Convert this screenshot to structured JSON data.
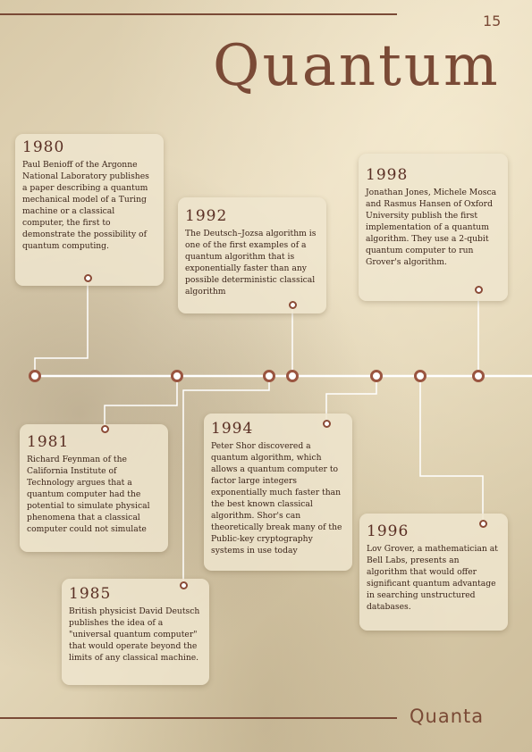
{
  "page": {
    "number": "15",
    "title": "Quantum",
    "brand": "Quanta"
  },
  "events": [
    {
      "year": "1980",
      "text": "Paul Benioff of the Argonne National Laboratory publishes a paper describing a quantum mechanical model of a Turing machine or a classical computer, the first to demonstrate the possibility of quantum computing."
    },
    {
      "year": "1981",
      "text": "Richard Feynman of the California Institute of Technology argues that a quantum computer had the potential to simulate physical phenomena that a classical computer could not simulate"
    },
    {
      "year": "1985",
      "text": "British physicist David Deutsch publishes the idea of a \"universal quantum computer\" that would operate beyond the limits of any classical machine."
    },
    {
      "year": "1992",
      "text": "The Deutsch–Jozsa algorithm is one of the first examples of a quantum algorithm that is exponentially faster than any possible deterministic classical algorithm"
    },
    {
      "year": "1994",
      "text": "Peter Shor discovered a quantum algorithm, which allows a quantum computer to factor large integers exponentially much faster than the best known classical algorithm. Shor's can theoretically break many of the Public-key cryptography systems in use today"
    },
    {
      "year": "1996",
      "text": "Lov Grover, a mathematician at Bell Labs, presents an algorithm that would offer significant quantum advantage in searching unstructured databases."
    },
    {
      "year": "1998",
      "text": "Jonathan Jones, Michele Mosca and Rasmus Hansen of Oxford University publish the first implementation of a quantum algorithm. They use a 2-qubit quantum computer to run Grover's algorithm."
    }
  ],
  "colors": {
    "accent": "#7a4a36",
    "node_ring": "#9a5540",
    "timeline": "#ffffff"
  }
}
